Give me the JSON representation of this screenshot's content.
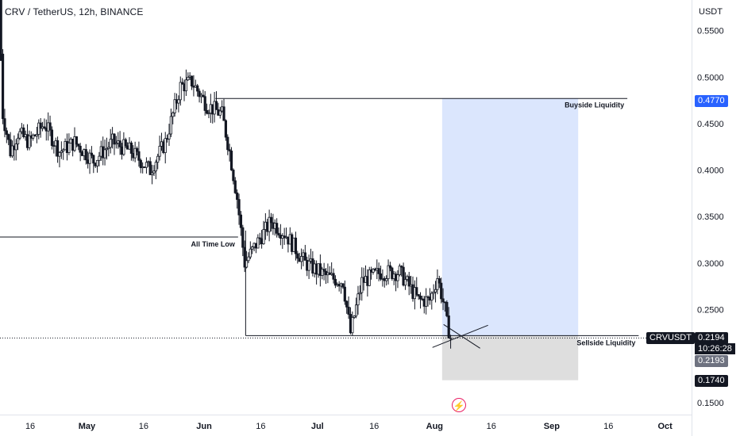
{
  "header": {
    "title": "CRV / TetherUS, 12h, BINANCE",
    "currency": "USDT"
  },
  "price_tags": {
    "target": "0.4770",
    "current": "0.2194",
    "countdown": "10:26:28",
    "secondary": "0.2193",
    "stop": "0.1740",
    "symbol": "CRVUSDT"
  },
  "annotations": {
    "buyside": "Buyside Liquidity",
    "alltime": "All Time Low",
    "sellside": "Sellside Liquidity"
  },
  "icons": {
    "bolt": "lightning-icon"
  },
  "colors": {
    "up": "#ffffff",
    "down": "#131722",
    "target_zone": "#dbe6fd",
    "stop_zone": "#dedede",
    "accent": "#2962ff",
    "bolt": "#e91e63"
  },
  "chart_data": {
    "type": "candlestick",
    "symbol": "CRVUSDT",
    "interval": "12h",
    "exchange": "BINANCE",
    "y_ticks": [
      "0.5500",
      "0.5000",
      "0.4500",
      "0.4000",
      "0.3500",
      "0.3000",
      "0.2500",
      "0.1500"
    ],
    "x_ticks": [
      "16",
      "May",
      "16",
      "Jun",
      "16",
      "Jul",
      "16",
      "Aug",
      "16",
      "Sep",
      "16",
      "Oct"
    ],
    "ylim": [
      0.137,
      0.583
    ],
    "x_start": "2023-04-08",
    "x_end": "2023-10-08",
    "levels": [
      {
        "label": "Buyside Liquidity",
        "value": 0.477,
        "from": "2023-06-04",
        "to": "2023-09-21"
      },
      {
        "label": "All Time Low",
        "value": 0.328,
        "from": "2023-04-08",
        "to": "2023-06-10"
      },
      {
        "label": "Sellside Liquidity",
        "value": 0.222,
        "from": "2023-06-12",
        "to": "2023-09-24"
      }
    ],
    "position": {
      "entry": 0.222,
      "target": 0.477,
      "stop": 0.174,
      "from": "2023-08-03",
      "to": "2023-09-08"
    },
    "last_price": 0.2194,
    "keypoints": [
      {
        "d": "2023-04-08",
        "p": 0.59
      },
      {
        "d": "2023-04-09",
        "p": 0.46
      },
      {
        "d": "2023-04-11",
        "p": 0.42
      },
      {
        "d": "2023-04-13",
        "p": 0.44
      },
      {
        "d": "2023-04-16",
        "p": 0.43
      },
      {
        "d": "2023-04-20",
        "p": 0.45
      },
      {
        "d": "2023-04-24",
        "p": 0.42
      },
      {
        "d": "2023-04-28",
        "p": 0.43
      },
      {
        "d": "2023-05-03",
        "p": 0.41
      },
      {
        "d": "2023-05-08",
        "p": 0.43
      },
      {
        "d": "2023-05-13",
        "p": 0.42
      },
      {
        "d": "2023-05-18",
        "p": 0.4
      },
      {
        "d": "2023-05-22",
        "p": 0.43
      },
      {
        "d": "2023-05-26",
        "p": 0.49
      },
      {
        "d": "2023-05-29",
        "p": 0.495
      },
      {
        "d": "2023-06-02",
        "p": 0.47
      },
      {
        "d": "2023-06-06",
        "p": 0.46
      },
      {
        "d": "2023-06-08",
        "p": 0.42
      },
      {
        "d": "2023-06-10",
        "p": 0.37
      },
      {
        "d": "2023-06-12",
        "p": 0.3
      },
      {
        "d": "2023-06-15",
        "p": 0.32
      },
      {
        "d": "2023-06-19",
        "p": 0.345
      },
      {
        "d": "2023-06-23",
        "p": 0.33
      },
      {
        "d": "2023-06-28",
        "p": 0.3
      },
      {
        "d": "2023-07-04",
        "p": 0.285
      },
      {
        "d": "2023-07-08",
        "p": 0.28
      },
      {
        "d": "2023-07-10",
        "p": 0.225
      },
      {
        "d": "2023-07-13",
        "p": 0.28
      },
      {
        "d": "2023-07-18",
        "p": 0.29
      },
      {
        "d": "2023-07-23",
        "p": 0.29
      },
      {
        "d": "2023-07-28",
        "p": 0.26
      },
      {
        "d": "2023-07-31",
        "p": 0.26
      },
      {
        "d": "2023-08-02",
        "p": 0.285
      },
      {
        "d": "2023-08-04",
        "p": 0.25
      },
      {
        "d": "2023-08-05",
        "p": 0.2194
      }
    ]
  }
}
